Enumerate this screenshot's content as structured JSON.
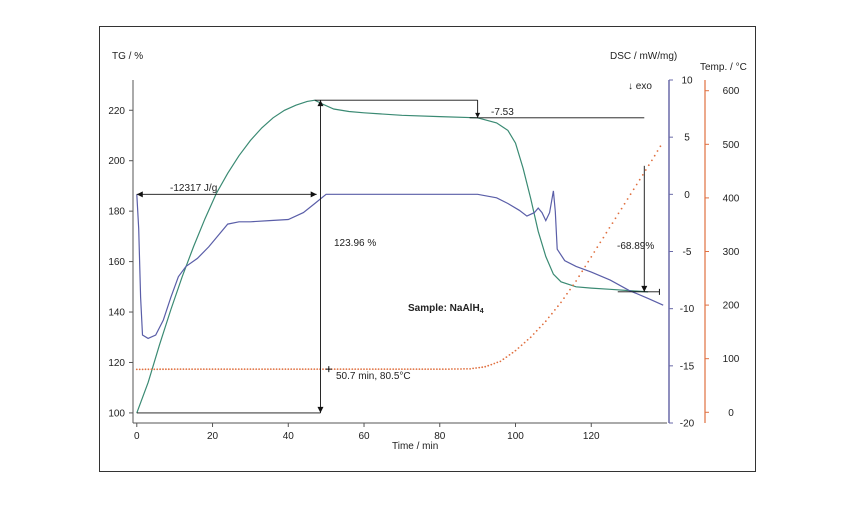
{
  "chart_data": {
    "type": "line",
    "sample_label": "Sample: NaAlH",
    "sample_subscript": "4",
    "xlabel": "Time / min",
    "x_ticks": [
      0,
      20,
      40,
      60,
      80,
      100,
      120
    ],
    "xlim": [
      -1,
      140
    ],
    "axes": {
      "tg": {
        "label": "TG / %",
        "ylim": [
          96,
          232
        ],
        "ticks": [
          100,
          120,
          140,
          160,
          180,
          200,
          220
        ]
      },
      "dsc": {
        "label": "DSC / mW/mg)",
        "ylim": [
          -20,
          10
        ],
        "ticks": [
          -20,
          -15,
          -10,
          -5,
          0,
          5,
          10
        ],
        "exo_label": "↓ exo"
      },
      "temp": {
        "label": "Temp. / °C",
        "ylim": [
          -20,
          620
        ],
        "ticks": [
          0,
          100,
          200,
          300,
          400,
          500,
          600
        ]
      }
    },
    "series": [
      {
        "axis": "tg",
        "color": "#3a8a73",
        "style": "solid",
        "points": [
          [
            0,
            100
          ],
          [
            3,
            112
          ],
          [
            6,
            127
          ],
          [
            9,
            141
          ],
          [
            12,
            154
          ],
          [
            15,
            166
          ],
          [
            18,
            177
          ],
          [
            21,
            187
          ],
          [
            24,
            195
          ],
          [
            27,
            202
          ],
          [
            30,
            208
          ],
          [
            33,
            213
          ],
          [
            36,
            217
          ],
          [
            39,
            220
          ],
          [
            42,
            222
          ],
          [
            45,
            223.5
          ],
          [
            47,
            224
          ],
          [
            49,
            222.5
          ],
          [
            52,
            220.5
          ],
          [
            56,
            219.5
          ],
          [
            60,
            219
          ],
          [
            70,
            218
          ],
          [
            80,
            217.5
          ],
          [
            90,
            217
          ],
          [
            95,
            215
          ],
          [
            98,
            212
          ],
          [
            100,
            207
          ],
          [
            102,
            197
          ],
          [
            104,
            185
          ],
          [
            106,
            172
          ],
          [
            108,
            162
          ],
          [
            110,
            155
          ],
          [
            112,
            152
          ],
          [
            116,
            150
          ],
          [
            120,
            149.5
          ],
          [
            125,
            149
          ],
          [
            130,
            148.5
          ],
          [
            135,
            148
          ]
        ]
      },
      {
        "axis": "dsc",
        "color": "#5a5ea8",
        "style": "solid",
        "points": [
          [
            0,
            0
          ],
          [
            0.5,
            -3
          ],
          [
            1,
            -9
          ],
          [
            1.5,
            -12.3
          ],
          [
            3,
            -12.6
          ],
          [
            5,
            -12.3
          ],
          [
            7,
            -11
          ],
          [
            9,
            -9
          ],
          [
            11,
            -7.2
          ],
          [
            13,
            -6.3
          ],
          [
            16,
            -5.6
          ],
          [
            19,
            -4.6
          ],
          [
            21,
            -3.8
          ],
          [
            24,
            -2.6
          ],
          [
            27,
            -2.4
          ],
          [
            30,
            -2.4
          ],
          [
            35,
            -2.3
          ],
          [
            40,
            -2.2
          ],
          [
            44,
            -1.6
          ],
          [
            47,
            -0.8
          ],
          [
            50,
            0
          ],
          [
            60,
            0
          ],
          [
            70,
            0
          ],
          [
            80,
            0
          ],
          [
            90,
            0
          ],
          [
            95,
            -0.3
          ],
          [
            98,
            -0.8
          ],
          [
            101,
            -1.4
          ],
          [
            103,
            -1.9
          ],
          [
            105,
            -1.6
          ],
          [
            106,
            -1.2
          ],
          [
            107,
            -1.6
          ],
          [
            108,
            -2.3
          ],
          [
            109,
            -1.6
          ],
          [
            110,
            0.3
          ],
          [
            110.5,
            -1.5
          ],
          [
            111,
            -4.8
          ],
          [
            113,
            -5.8
          ],
          [
            116,
            -6.3
          ],
          [
            120,
            -6.8
          ],
          [
            125,
            -7.5
          ],
          [
            130,
            -8.4
          ],
          [
            135,
            -9.1
          ],
          [
            139,
            -9.7
          ]
        ]
      },
      {
        "axis": "temp",
        "color": "#e07040",
        "style": "dotted",
        "points": [
          [
            0,
            80
          ],
          [
            10,
            80.5
          ],
          [
            20,
            80.5
          ],
          [
            30,
            80.5
          ],
          [
            40,
            80.5
          ],
          [
            50.7,
            80.5
          ],
          [
            60,
            80.5
          ],
          [
            70,
            80.5
          ],
          [
            80,
            80.5
          ],
          [
            88,
            81
          ],
          [
            92,
            85
          ],
          [
            96,
            95
          ],
          [
            100,
            115
          ],
          [
            104,
            140
          ],
          [
            108,
            170
          ],
          [
            112,
            205
          ],
          [
            116,
            245
          ],
          [
            120,
            290
          ],
          [
            124,
            335
          ],
          [
            128,
            380
          ],
          [
            132,
            425
          ],
          [
            136,
            470
          ],
          [
            139,
            505
          ]
        ]
      }
    ],
    "annotations": {
      "enthalpy": "-12317 J/g",
      "tg_step_up": "123.96 %",
      "tg_step_down": "-7.53",
      "tg_loss": "-68.89%",
      "onset": "50.7 min, 80.5°C"
    }
  }
}
